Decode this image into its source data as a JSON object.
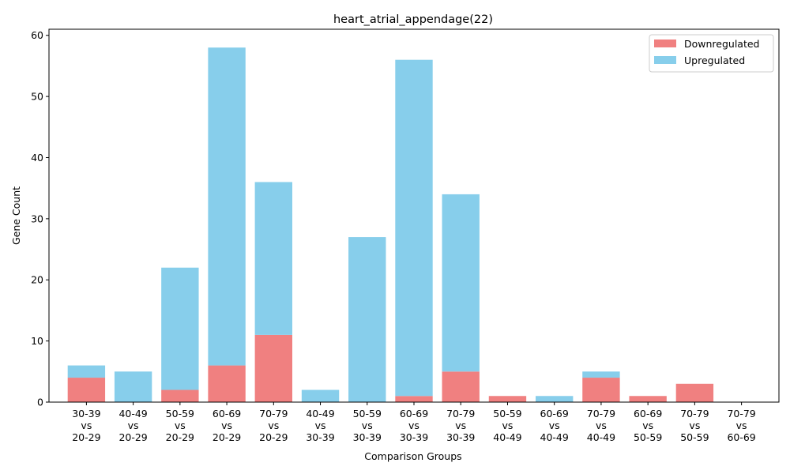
{
  "chart_data": {
    "type": "bar",
    "stacked": true,
    "title": "heart_atrial_appendage(22)",
    "xlabel": "Comparison Groups",
    "ylabel": "Gene Count",
    "ylim": [
      0,
      61
    ],
    "yticks": [
      0,
      10,
      20,
      30,
      40,
      50,
      60
    ],
    "grid": false,
    "legend_position": "top-right",
    "categories": [
      [
        "30-39",
        "vs",
        "20-29"
      ],
      [
        "40-49",
        "vs",
        "20-29"
      ],
      [
        "50-59",
        "vs",
        "20-29"
      ],
      [
        "60-69",
        "vs",
        "20-29"
      ],
      [
        "70-79",
        "vs",
        "20-29"
      ],
      [
        "40-49",
        "vs",
        "30-39"
      ],
      [
        "50-59",
        "vs",
        "30-39"
      ],
      [
        "60-69",
        "vs",
        "30-39"
      ],
      [
        "70-79",
        "vs",
        "30-39"
      ],
      [
        "50-59",
        "vs",
        "40-49"
      ],
      [
        "60-69",
        "vs",
        "40-49"
      ],
      [
        "70-79",
        "vs",
        "40-49"
      ],
      [
        "60-69",
        "vs",
        "50-59"
      ],
      [
        "70-79",
        "vs",
        "50-59"
      ],
      [
        "70-79",
        "vs",
        "60-69"
      ]
    ],
    "series": [
      {
        "name": "Downregulated",
        "color": "#f08080",
        "values": [
          4,
          0,
          2,
          6,
          11,
          0,
          0,
          1,
          5,
          1,
          0,
          4,
          1,
          3,
          0
        ]
      },
      {
        "name": "Upregulated",
        "color": "#87ceeb",
        "values": [
          2,
          5,
          20,
          52,
          25,
          2,
          27,
          55,
          29,
          0,
          1,
          1,
          0,
          0,
          0
        ]
      }
    ]
  }
}
